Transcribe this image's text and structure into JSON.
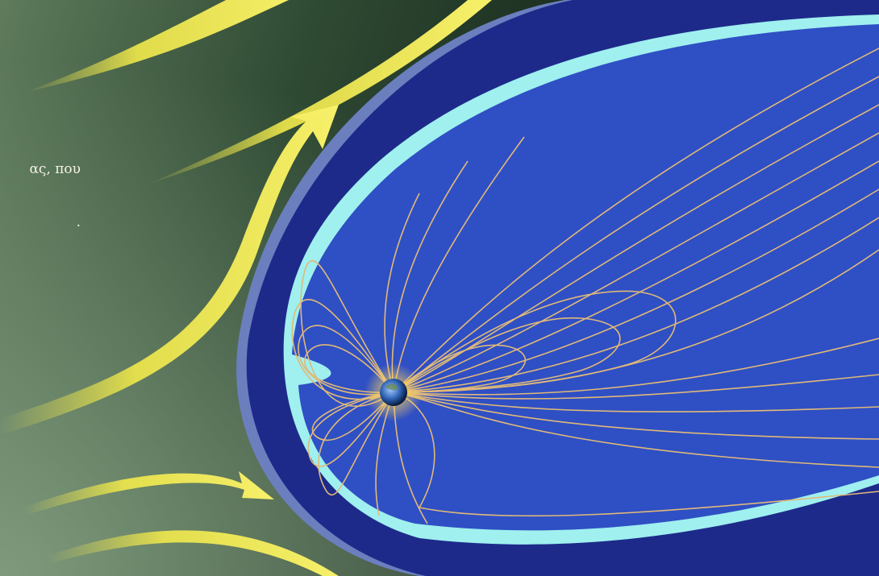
{
  "caption": {
    "line1": "ας, που",
    "line2": "."
  },
  "colors": {
    "space_dark": "#0f1d14",
    "space_green": "#4d6a4c",
    "outer_shell": "#6b7fbf",
    "sheath": "#1e2a8a",
    "magnetosphere": "#2f4fc4",
    "cyan_edge": "#9ff0ef",
    "field_lines": "#e0b979",
    "solar_wind": "#f1e94b"
  },
  "icons": [
    "earth-icon"
  ]
}
